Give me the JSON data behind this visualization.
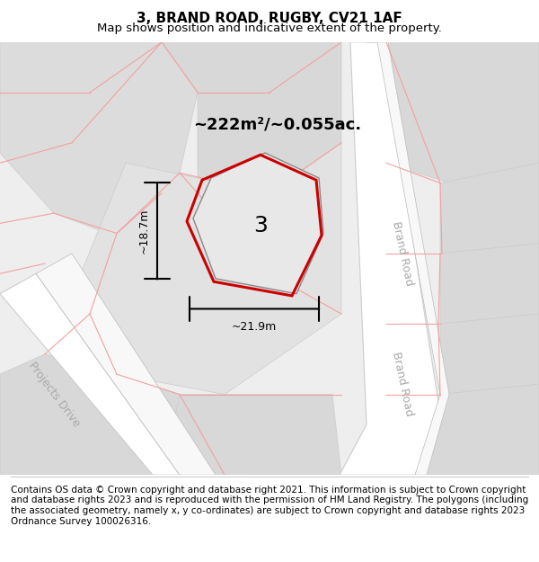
{
  "title": "3, BRAND ROAD, RUGBY, CV21 1AF",
  "subtitle": "Map shows position and indicative extent of the property.",
  "footer": "Contains OS data © Crown copyright and database right 2021. This information is subject to Crown copyright and database rights 2023 and is reproduced with the permission of HM Land Registry. The polygons (including the associated geometry, namely x, y co-ordinates) are subject to Crown copyright and database rights 2023 Ordnance Survey 100026316.",
  "map_bg": "#f2f2f2",
  "plot_area_color": "#e0e0e0",
  "highlight_fill": "#e8e8e8",
  "highlight_stroke": "#cc0000",
  "road_color": "#ffffff",
  "road_border_color": "#cccccc",
  "pink_line_color": "#f4a0a0",
  "dim_line_color": "#000000",
  "area_label": "~222m²/~0.055ac.",
  "plot_number": "3",
  "dim_height": "~18.7m",
  "dim_width": "~21.9m",
  "brand_road_label": "Brand Road",
  "projects_drive_label": "Projects Drive",
  "title_fontsize": 11,
  "subtitle_fontsize": 9.5,
  "footer_fontsize": 7.5,
  "figsize": [
    6.0,
    6.25
  ],
  "dpi": 100
}
